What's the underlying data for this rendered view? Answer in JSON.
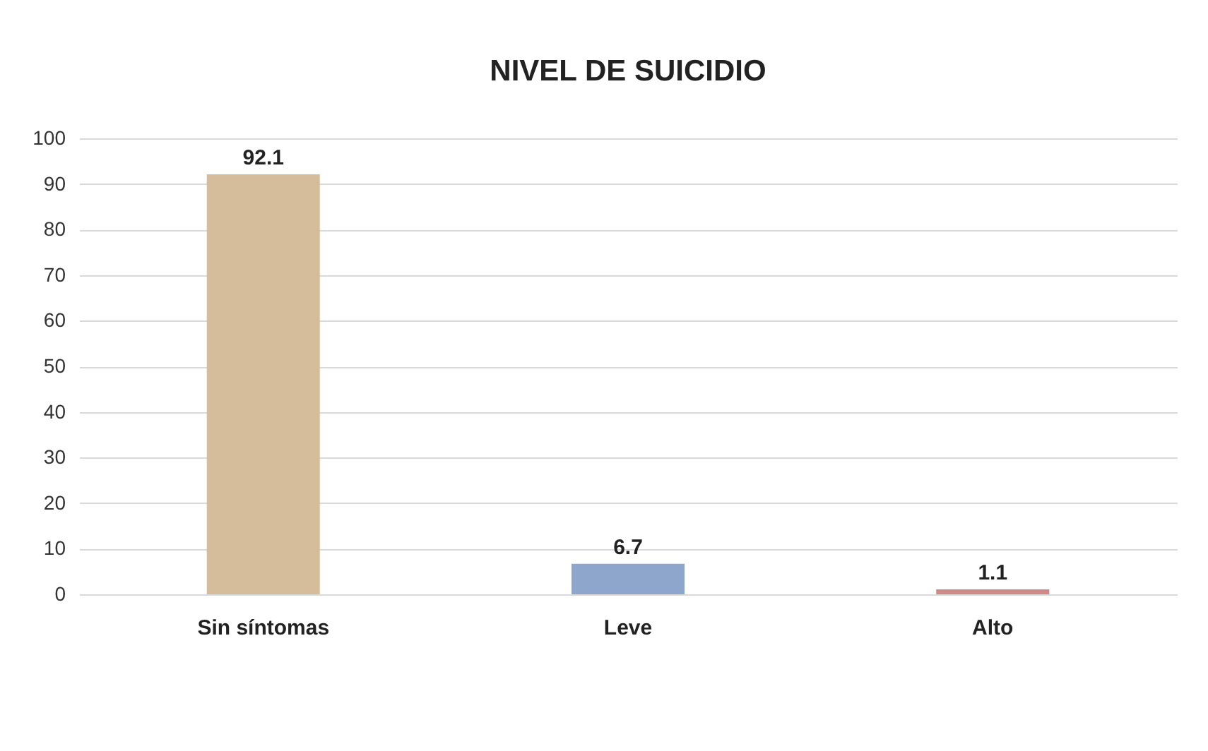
{
  "chart_data": {
    "type": "bar",
    "title": "NIVEL DE SUICIDIO",
    "categories": [
      "Sin síntomas",
      "Leve",
      "Alto"
    ],
    "values": [
      92.1,
      6.7,
      1.1
    ],
    "colors": [
      "#d5bc9a",
      "#8ea5cc",
      "#cf8a87"
    ],
    "ylim": [
      0,
      100
    ],
    "yticks": [
      0,
      10,
      20,
      30,
      40,
      50,
      60,
      70,
      80,
      90,
      100
    ],
    "grid": "y",
    "data_labels": true
  }
}
